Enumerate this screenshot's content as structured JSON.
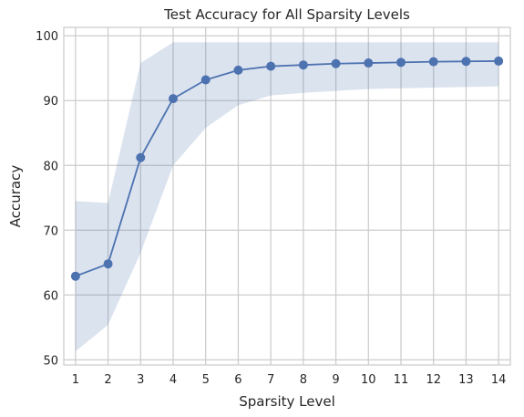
{
  "chart_data": {
    "type": "line",
    "title": "Test Accuracy for All Sparsity Levels",
    "xlabel": "Sparsity Level",
    "ylabel": "Accuracy",
    "x": [
      1,
      2,
      3,
      4,
      5,
      6,
      7,
      8,
      9,
      10,
      11,
      12,
      13,
      14
    ],
    "x_tick_labels": [
      "1",
      "2",
      "3",
      "4",
      "5",
      "6",
      "7",
      "8",
      "9",
      "10",
      "11",
      "12",
      "13",
      "14"
    ],
    "y_ticks": [
      50,
      60,
      70,
      80,
      90,
      100
    ],
    "y_tick_labels": [
      "50",
      "60",
      "70",
      "80",
      "90",
      "100"
    ],
    "xlim": [
      0.64,
      14.36
    ],
    "ylim": [
      49.2,
      101.3
    ],
    "grid": true,
    "series": [
      {
        "values": [
          62.9,
          64.8,
          81.2,
          90.3,
          93.2,
          94.7,
          95.3,
          95.5,
          95.7,
          95.8,
          95.9,
          96.0,
          96.05,
          96.1
        ],
        "band_upper": [
          74.5,
          74.2,
          95.8,
          99.0,
          99.0,
          99.0,
          99.0,
          99.0,
          99.0,
          99.0,
          99.0,
          99.0,
          99.0,
          99.0
        ],
        "band_lower": [
          51.3,
          55.4,
          66.5,
          80.0,
          85.8,
          89.3,
          90.8,
          91.2,
          91.5,
          91.8,
          91.9,
          92.0,
          92.1,
          92.2
        ],
        "color": "#4c72b0",
        "band_color": "#4c72b0"
      }
    ]
  }
}
